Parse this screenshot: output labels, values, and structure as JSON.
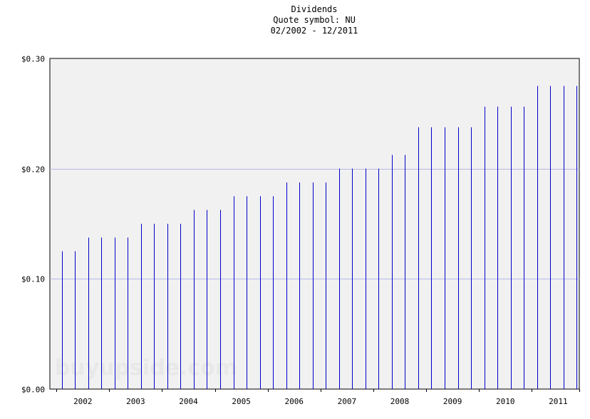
{
  "chart_data": {
    "type": "bar",
    "title": "Dividends",
    "subtitle_lines": [
      "Quote symbol: NU",
      "02/2002 - 12/2011"
    ],
    "watermark": "buyupside.com",
    "ylim": [
      0,
      0.3
    ],
    "yticks": [
      "$0.00",
      "$0.10",
      "$0.20",
      "$0.30"
    ],
    "ytick_values": [
      0,
      0.1,
      0.2,
      0.3
    ],
    "xticks": [
      "2002",
      "2003",
      "2004",
      "2005",
      "2006",
      "2007",
      "2008",
      "2009",
      "2010",
      "2011"
    ],
    "xlim_years": [
      2001.875,
      2011.9
    ],
    "grid": true,
    "colors": {
      "bar": "#0000cc",
      "grid": "#b8b8e8",
      "plot_bg": "#f1f1f1",
      "axis": "#000000"
    },
    "x": [
      2002.1,
      2002.35,
      2002.6,
      2002.85,
      2003.1,
      2003.35,
      2003.6,
      2003.85,
      2004.1,
      2004.35,
      2004.6,
      2004.85,
      2005.1,
      2005.35,
      2005.6,
      2005.85,
      2006.1,
      2006.35,
      2006.6,
      2006.85,
      2007.1,
      2007.35,
      2007.6,
      2007.85,
      2008.1,
      2008.35,
      2008.6,
      2008.85,
      2009.1,
      2009.35,
      2009.6,
      2009.85,
      2010.1,
      2010.35,
      2010.6,
      2010.85,
      2011.1,
      2011.35,
      2011.6,
      2011.85
    ],
    "values": [
      0.125,
      0.125,
      0.1375,
      0.1375,
      0.1375,
      0.1375,
      0.15,
      0.15,
      0.15,
      0.15,
      0.1625,
      0.1625,
      0.1625,
      0.175,
      0.175,
      0.175,
      0.175,
      0.1875,
      0.1875,
      0.1875,
      0.1875,
      0.2,
      0.2,
      0.2,
      0.2,
      0.2125,
      0.2125,
      0.2375,
      0.2375,
      0.2375,
      0.2375,
      0.2375,
      0.25625,
      0.25625,
      0.25625,
      0.25625,
      0.275,
      0.275,
      0.275,
      0.275
    ]
  }
}
